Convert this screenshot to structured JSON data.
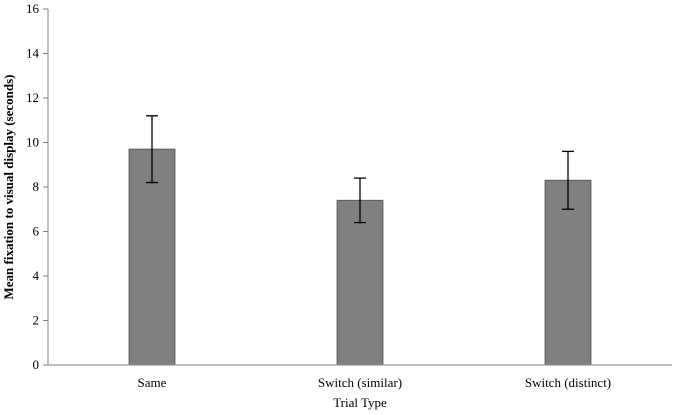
{
  "chart_data": {
    "type": "bar",
    "title": "",
    "xlabel": "Trial Type",
    "ylabel": "Mean fixation to visual display (seconds)",
    "categories": [
      "Same",
      "Switch (similar)",
      "Switch (distinct)"
    ],
    "values": [
      9.7,
      7.4,
      8.3
    ],
    "error_low": [
      8.2,
      6.4,
      7.0
    ],
    "error_high": [
      11.2,
      8.4,
      9.6
    ],
    "ylim": [
      0,
      16
    ],
    "yticks": [
      0,
      2,
      4,
      6,
      8,
      10,
      12,
      14,
      16
    ],
    "grid": false,
    "bar_color": "#808080",
    "bar_edge_color": "#5a5a5a"
  }
}
